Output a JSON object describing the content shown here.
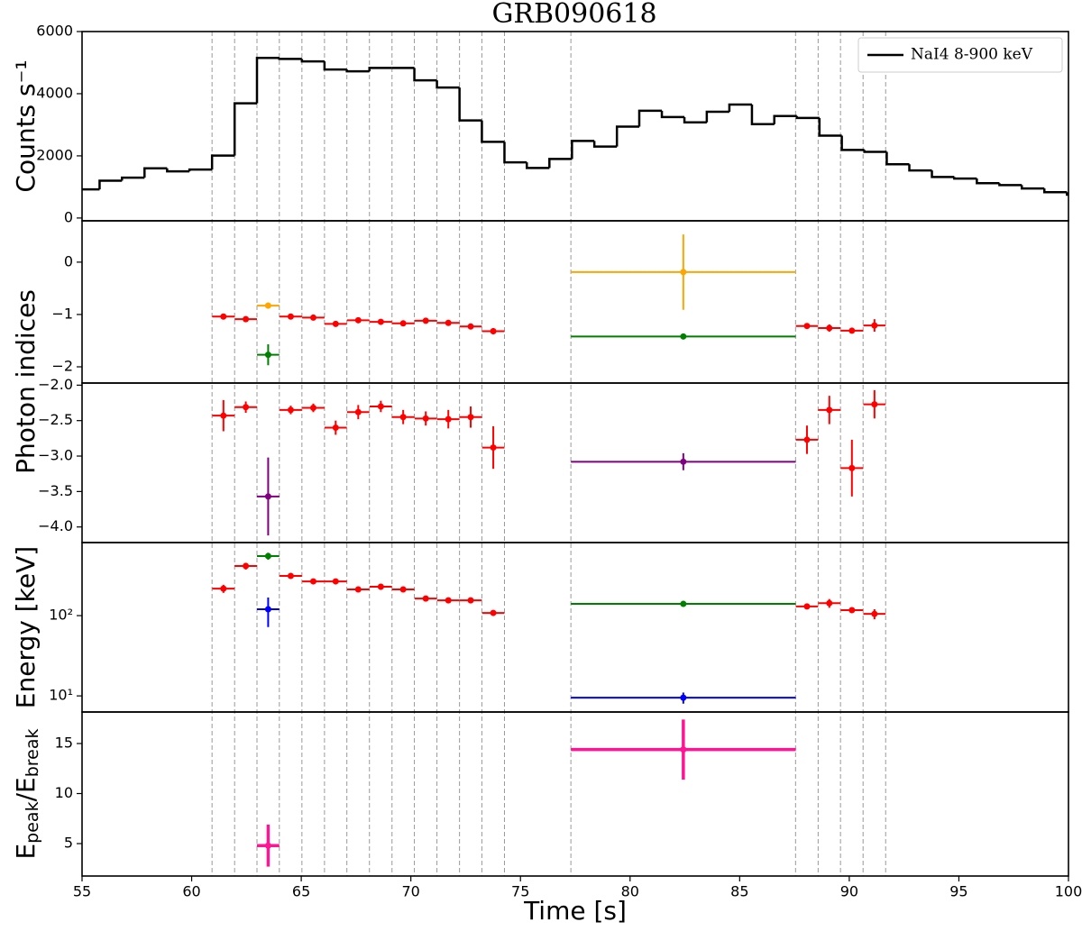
{
  "chart_data": [
    {
      "type": "histogram",
      "title": "GRB090618",
      "ylabel": "Counts s⁻¹",
      "legend": "upper right",
      "series": [
        {
          "name": "NaI4 8-900 keV",
          "color": "#000000"
        }
      ],
      "bins": [
        55,
        55.8,
        56.82,
        57.85,
        58.88,
        59.9,
        60.93,
        61.96,
        62.98,
        64.0,
        65.03,
        66.06,
        67.08,
        68.11,
        69.14,
        70.16,
        71.19,
        72.22,
        73.24,
        74.27,
        75.29,
        76.32,
        77.35,
        78.37,
        79.4,
        80.42,
        81.45,
        82.48,
        83.5,
        84.53,
        85.56,
        86.58,
        87.61,
        88.64,
        89.66,
        90.69,
        91.71,
        92.74,
        93.77,
        94.79,
        95.82,
        96.85,
        97.87,
        98.9,
        99.93,
        100
      ],
      "values": [
        920,
        1200,
        1300,
        1600,
        1500,
        1560,
        2010,
        3690,
        5150,
        5120,
        5040,
        4780,
        4720,
        4830,
        4830,
        4430,
        4200,
        3140,
        2450,
        1790,
        1610,
        1900,
        2480,
        2300,
        2940,
        3450,
        3250,
        3080,
        3420,
        3650,
        3020,
        3280,
        3220,
        2650,
        2190,
        2130,
        1730,
        1530,
        1320,
        1270,
        1120,
        1060,
        950,
        830,
        750
      ],
      "vlines": [
        60.93,
        61.96,
        62.98,
        64.0,
        65.03,
        66.06,
        67.08,
        68.11,
        69.14,
        70.16,
        71.19,
        72.22,
        73.24,
        74.27,
        77.3,
        87.55,
        88.58,
        89.6,
        90.63,
        91.66
      ],
      "xlim": [
        55,
        100
      ],
      "ylim": [
        -90,
        6000
      ],
      "yticks": [
        0,
        2000,
        4000,
        6000
      ]
    },
    {
      "type": "errorbar",
      "ylabel": "Photon indices",
      "xlim": [
        55,
        100
      ],
      "ylim": [
        -2.31,
        0.79
      ],
      "yticks": [
        {
          "value": -2,
          "label": "−2"
        },
        {
          "value": -1,
          "label": "−1"
        },
        0
      ],
      "series": [
        {
          "color": "#ff0000",
          "x": [
            61.45,
            62.47,
            64.52,
            65.55,
            66.57,
            67.6,
            68.63,
            69.65,
            70.68,
            71.71,
            72.73,
            73.76,
            88.07,
            89.09,
            90.12,
            91.15
          ],
          "xerr": [
            0.51,
            0.51,
            0.51,
            0.51,
            0.51,
            0.51,
            0.51,
            0.51,
            0.51,
            0.51,
            0.51,
            0.51,
            0.51,
            0.51,
            0.51,
            0.51
          ],
          "values": [
            -1.04,
            -1.09,
            -1.04,
            -1.06,
            -1.18,
            -1.11,
            -1.14,
            -1.17,
            -1.12,
            -1.16,
            -1.23,
            -1.32,
            -1.22,
            -1.26,
            -1.31,
            -1.21
          ],
          "errors": [
            0.05,
            0.04,
            0.03,
            0.03,
            0.04,
            0.04,
            0.04,
            0.04,
            0.04,
            0.04,
            0.05,
            0.06,
            0.04,
            0.07,
            0.05,
            0.12
          ]
        },
        {
          "color": "#ffa500",
          "x": [
            63.49,
            82.43
          ],
          "xerr": [
            0.51,
            5.13
          ],
          "values": [
            -0.83,
            -0.19
          ],
          "errors": [
            0.06,
            0.72
          ]
        },
        {
          "color": "#008000",
          "x": [
            63.49,
            82.43
          ],
          "xerr": [
            0.51,
            5.13
          ],
          "values": [
            -1.77,
            -1.42
          ],
          "errors": [
            0.2,
            0.04
          ]
        }
      ]
    },
    {
      "type": "errorbar",
      "xlim": [
        55,
        100
      ],
      "ylim": [
        -4.22,
        -1.97
      ],
      "yticks": [
        {
          "value": -2,
          "label": "−2.0"
        },
        {
          "value": -2.5,
          "label": "−2.5"
        },
        {
          "value": -3,
          "label": "−3.0"
        },
        {
          "value": -3.5,
          "label": "−3.5"
        },
        {
          "value": -4,
          "label": "−4.0"
        }
      ],
      "series": [
        {
          "color": "#ff0000",
          "x": [
            61.45,
            62.47,
            64.52,
            65.55,
            66.57,
            67.6,
            68.63,
            69.65,
            70.68,
            71.71,
            72.73,
            73.76,
            88.07,
            89.09,
            90.12,
            91.15
          ],
          "xerr": [
            0.51,
            0.51,
            0.51,
            0.51,
            0.51,
            0.51,
            0.51,
            0.51,
            0.51,
            0.51,
            0.51,
            0.51,
            0.51,
            0.51,
            0.51,
            0.51
          ],
          "values": [
            -2.43,
            -2.31,
            -2.35,
            -2.32,
            -2.6,
            -2.38,
            -2.3,
            -2.45,
            -2.47,
            -2.48,
            -2.45,
            -2.88,
            -2.77,
            -2.35,
            -3.17,
            -2.27
          ],
          "errors": [
            0.22,
            0.08,
            0.06,
            0.06,
            0.1,
            0.1,
            0.08,
            0.1,
            0.1,
            0.13,
            0.15,
            0.3,
            0.2,
            0.2,
            0.4,
            0.2
          ]
        },
        {
          "color": "#800080",
          "x": [
            63.49,
            82.43
          ],
          "xerr": [
            0.51,
            5.13
          ],
          "values": [
            -3.57,
            -3.08
          ],
          "errors": [
            0.55,
            0.12
          ]
        }
      ]
    },
    {
      "type": "errorbar",
      "ylabel": "Energy [keV]",
      "yscale": "log",
      "xlim": [
        55,
        100
      ],
      "ylim": [
        6.3,
        813
      ],
      "yticks": [
        {
          "value": 10,
          "label": "10¹"
        },
        {
          "value": 100,
          "label": "10²"
        }
      ],
      "series": [
        {
          "color": "#ff0000",
          "x": [
            61.45,
            62.47,
            64.52,
            65.55,
            66.57,
            67.6,
            68.63,
            69.65,
            70.68,
            71.71,
            72.73,
            73.76,
            88.07,
            89.09,
            90.12,
            91.15
          ],
          "xerr": [
            0.51,
            0.51,
            0.51,
            0.51,
            0.51,
            0.51,
            0.51,
            0.51,
            0.51,
            0.51,
            0.51,
            0.51,
            0.51,
            0.51,
            0.51,
            0.51
          ],
          "values": [
            217,
            415,
            312,
            267,
            267,
            212,
            229,
            212,
            163,
            155,
            155,
            108,
            130,
            143,
            117,
            105
          ],
          "errors": [
            25,
            40,
            20,
            18,
            18,
            15,
            20,
            15,
            10,
            10,
            10,
            8,
            8,
            18,
            8,
            15
          ]
        },
        {
          "color": "#008000",
          "x": [
            63.49,
            82.43
          ],
          "xerr": [
            0.51,
            5.13
          ],
          "values": [
            552,
            140
          ],
          "errors": [
            55,
            5
          ]
        },
        {
          "color": "#0000ff",
          "x": [
            63.49,
            82.43
          ],
          "xerr": [
            0.51,
            5.13
          ],
          "values": [
            120,
            9.5
          ],
          "errors": [
            48,
            1.5
          ]
        }
      ]
    },
    {
      "type": "errorbar",
      "ylabel_parts": [
        "E",
        "peak",
        "/E",
        "break"
      ],
      "xlabel": "Time [s]",
      "xlim": [
        55,
        100
      ],
      "ylim": [
        1.76,
        18.15
      ],
      "yticks": [
        5,
        10,
        15
      ],
      "xticks": [
        55,
        60,
        65,
        70,
        75,
        80,
        85,
        90,
        95,
        100
      ],
      "series": [
        {
          "color": "#ff1493",
          "x": [
            63.49,
            82.43
          ],
          "xerr": [
            0.51,
            5.13
          ],
          "values": [
            4.8,
            14.4
          ],
          "errors": [
            2.1,
            3.0
          ]
        }
      ]
    }
  ]
}
